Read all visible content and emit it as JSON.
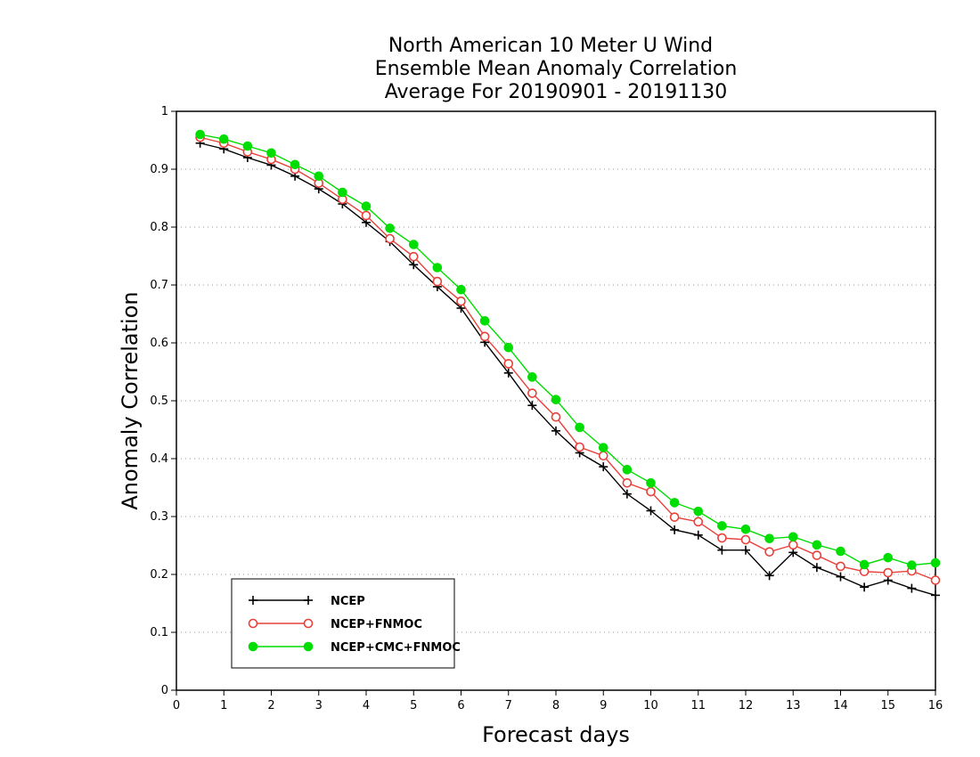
{
  "chart_data": {
    "type": "line",
    "title": [
      "North American 10 Meter U Wind",
      "Ensemble Mean Anomaly Correlation",
      "Average For 20190901 - 20191130"
    ],
    "xlabel": "Forecast days",
    "ylabel": "Anomaly Correlation",
    "xlim": [
      0,
      16
    ],
    "ylim": [
      0,
      1
    ],
    "xticks": [
      0,
      1,
      2,
      3,
      4,
      5,
      6,
      7,
      8,
      9,
      10,
      11,
      12,
      13,
      14,
      15,
      16
    ],
    "yticks": [
      0,
      0.1,
      0.2,
      0.3,
      0.4,
      0.5,
      0.6,
      0.7,
      0.8,
      0.9,
      1
    ],
    "grid": "horizontal dotted",
    "legend_position": "bottom-left",
    "x": [
      0.5,
      1,
      1.5,
      2,
      2.5,
      3,
      3.5,
      4,
      4.5,
      5,
      5.5,
      6,
      6.5,
      7,
      7.5,
      8,
      8.5,
      9,
      9.5,
      10,
      10.5,
      11,
      11.5,
      12,
      12.5,
      13,
      13.5,
      14,
      14.5,
      15,
      15.5,
      16
    ],
    "series": [
      {
        "name": "NCEP",
        "color": "#000000",
        "marker": "plus",
        "values": [
          0.945,
          0.935,
          0.92,
          0.907,
          0.888,
          0.866,
          0.84,
          0.808,
          0.775,
          0.735,
          0.697,
          0.66,
          0.601,
          0.548,
          0.492,
          0.448,
          0.41,
          0.386,
          0.339,
          0.31,
          0.277,
          0.268,
          0.242,
          0.242,
          0.198,
          0.238,
          0.212,
          0.196,
          0.178,
          0.19,
          0.176,
          0.164
        ]
      },
      {
        "name": "NCEP+FNMOC",
        "color": "#e8403a",
        "marker": "open-circle",
        "values": [
          0.955,
          0.945,
          0.93,
          0.917,
          0.9,
          0.876,
          0.848,
          0.82,
          0.78,
          0.749,
          0.706,
          0.672,
          0.611,
          0.564,
          0.513,
          0.472,
          0.42,
          0.405,
          0.358,
          0.343,
          0.299,
          0.291,
          0.263,
          0.26,
          0.239,
          0.251,
          0.233,
          0.214,
          0.205,
          0.203,
          0.206,
          0.19
        ]
      },
      {
        "name": "NCEP+CMC+FNMOC",
        "color": "#00dd00",
        "marker": "filled-circle",
        "values": [
          0.96,
          0.952,
          0.94,
          0.928,
          0.908,
          0.888,
          0.86,
          0.836,
          0.798,
          0.77,
          0.73,
          0.692,
          0.638,
          0.592,
          0.541,
          0.502,
          0.454,
          0.419,
          0.381,
          0.358,
          0.324,
          0.309,
          0.284,
          0.278,
          0.262,
          0.265,
          0.251,
          0.24,
          0.217,
          0.229,
          0.216,
          0.22
        ]
      }
    ]
  }
}
